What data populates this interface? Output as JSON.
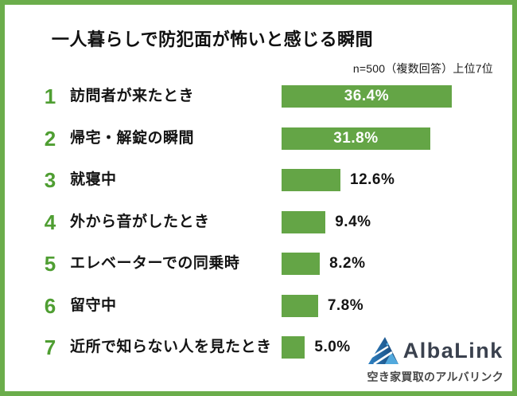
{
  "chart_data": {
    "type": "bar",
    "orientation": "horizontal",
    "title": "一人暮らしで防犯面が怖いと感じる瞬間",
    "note": "n=500（複数回答）上位7位",
    "ranks": [
      "1",
      "2",
      "3",
      "4",
      "5",
      "6",
      "7"
    ],
    "categories": [
      "訪問者が来たとき",
      "帰宅・解錠の瞬間",
      "就寝中",
      "外から音がしたとき",
      "エレベーターでの同乗時",
      "留守中",
      "近所で知らない人を見たとき"
    ],
    "values": [
      36.4,
      31.8,
      12.6,
      9.4,
      8.2,
      7.8,
      5.0
    ],
    "value_labels": [
      "36.4%",
      "31.8%",
      "12.6%",
      "9.4%",
      "8.2%",
      "7.8%",
      "5.0%"
    ],
    "xlim": [
      0,
      40
    ],
    "grid": false,
    "legend": false,
    "bar_color": "#64a546",
    "value_label_inside_min": 30
  },
  "colors": {
    "frame_green": "#6bad4b",
    "bar_green": "#64a546",
    "rank_green": "#4f9e32",
    "title_text": "#111111",
    "value_text": "#141414",
    "in_bar_value_text": "#ffffff",
    "logo_text_navy": "#3a414e",
    "logo_blue_dark": "#16406f",
    "logo_blue_mid": "#2e82c4",
    "logo_blue_light": "#52a9dd",
    "tagline_gray": "#474747"
  },
  "branding": {
    "logo_text": "AlbaLink",
    "tagline": "空き家買取のアルバリンク"
  }
}
